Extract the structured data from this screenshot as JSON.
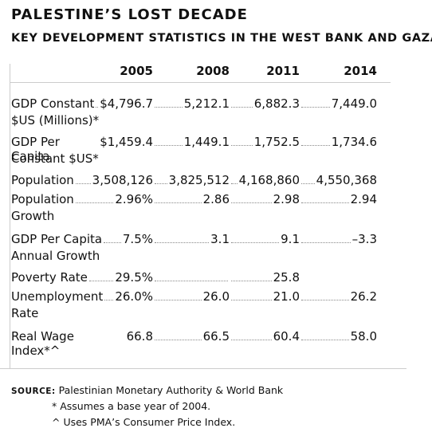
{
  "header": {
    "title": "PALESTINE’S LOST DECADE",
    "subtitle": "KEY DEVELOPMENT STATISTICS IN THE WEST BANK AND GAZA"
  },
  "table": {
    "columns": [
      "2005",
      "2008",
      "2011",
      "2014"
    ],
    "rows": [
      {
        "label": [
          "GDP Constant",
          "$US (Millions)*"
        ],
        "values": [
          "$4,796.7",
          "5,212.1",
          "6,882.3",
          "7,449.0"
        ]
      },
      {
        "label": [
          "GDP Per Capita",
          "Constant $US*"
        ],
        "values": [
          "$1,459.4",
          "1,449.1",
          "1,752.5",
          "1,734.6"
        ]
      },
      {
        "label": [
          "Population"
        ],
        "values": [
          "3,508,126",
          "3,825,512",
          "4,168,860",
          "4,550,368"
        ]
      },
      {
        "label": [
          "Population",
          "Growth"
        ],
        "values": [
          "2.96%",
          "2.86",
          "2.98",
          "2.94"
        ]
      },
      {
        "label": [
          "GDP Per Capita",
          "Annual Growth"
        ],
        "values": [
          "7.5%",
          "3.1",
          "9.1",
          "–3.3"
        ]
      },
      {
        "label": [
          "Poverty Rate"
        ],
        "values": [
          "29.5%",
          null,
          "25.8",
          null
        ]
      },
      {
        "label": [
          "Unemployment",
          "Rate"
        ],
        "values": [
          "26.0%",
          "26.0",
          "21.0",
          "26.2"
        ]
      },
      {
        "label": [
          "Real Wage Index*^"
        ],
        "values": [
          "66.8",
          "66.5",
          "60.4",
          "58.0"
        ]
      }
    ]
  },
  "footer": {
    "source_label": "SOURCE:",
    "source": "Palestinian Monetary Authority & World Bank",
    "notes": [
      "* Assumes a base year of 2004.",
      "^ Uses PMA’s Consumer Price Index."
    ]
  }
}
